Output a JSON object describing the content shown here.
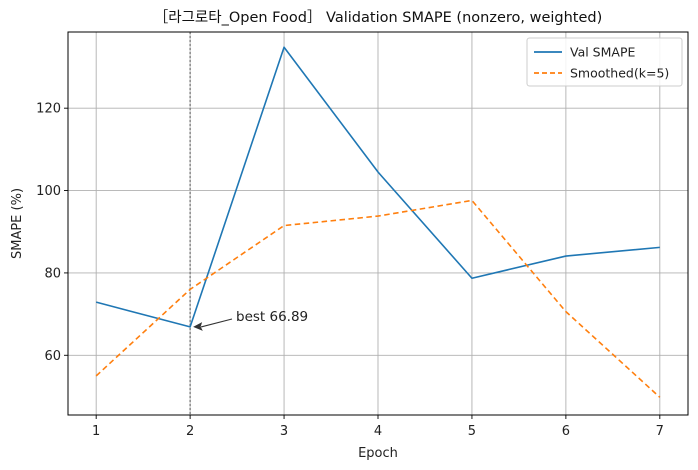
{
  "chart_data": {
    "type": "line",
    "title": "［라그로타_Open Food］ Validation SMAPE (nonzero, weighted)",
    "xlabel": "Epoch",
    "ylabel": "SMAPE (%)",
    "x": [
      1,
      2,
      3,
      4,
      5,
      6,
      7
    ],
    "xlim": [
      0.7,
      7.3
    ],
    "ylim": [
      45.5,
      138.5
    ],
    "xticks": [
      1,
      2,
      3,
      4,
      5,
      6,
      7
    ],
    "yticks": [
      60,
      80,
      100,
      120
    ],
    "grid": true,
    "legend_position": "top-right",
    "series": [
      {
        "name": "Val SMAPE",
        "color": "#1f77b4",
        "style": "solid",
        "values": [
          72.9,
          66.89,
          134.8,
          104.5,
          78.7,
          84.1,
          86.2
        ]
      },
      {
        "name": "Smoothed(k=5)",
        "color": "#ff7f0e",
        "style": "dashed",
        "values": [
          55.0,
          76.0,
          91.5,
          93.8,
          97.6,
          70.6,
          49.8
        ]
      }
    ],
    "best_marker": {
      "x": 2,
      "y": 66.89,
      "label": "best 66.89",
      "line_color": "#777777"
    }
  }
}
